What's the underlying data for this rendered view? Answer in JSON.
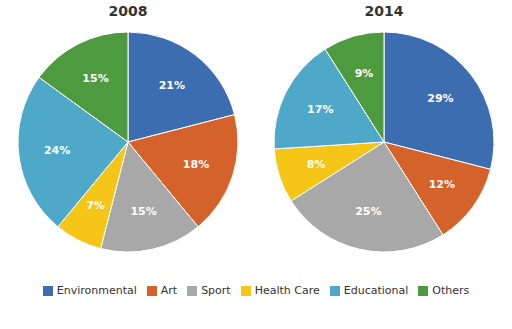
{
  "chart_data": [
    {
      "type": "pie",
      "title": "2008",
      "categories": [
        "Environmental",
        "Art",
        "Sport",
        "Health Care",
        "Educational",
        "Others"
      ],
      "values": [
        21,
        18,
        15,
        7,
        24,
        15
      ],
      "value_labels": [
        "21%",
        "18%",
        "15%",
        "7%",
        "24%",
        "15%"
      ],
      "colors": [
        "#3C6DB0",
        "#D4622A",
        "#A8A8A8",
        "#F5C518",
        "#4EA8C8",
        "#4E9A3F"
      ],
      "data_labels": true,
      "legend": "bottom"
    },
    {
      "type": "pie",
      "title": "2014",
      "categories": [
        "Environmental",
        "Art",
        "Sport",
        "Health Care",
        "Educational",
        "Others"
      ],
      "values": [
        29,
        12,
        25,
        8,
        17,
        9
      ],
      "value_labels": [
        "29%",
        "12%",
        "25%",
        "8%",
        "17%",
        "9%"
      ],
      "colors": [
        "#3C6DB0",
        "#D4622A",
        "#A8A8A8",
        "#F5C518",
        "#4EA8C8",
        "#4E9A3F"
      ],
      "data_labels": true,
      "legend": "bottom"
    }
  ]
}
